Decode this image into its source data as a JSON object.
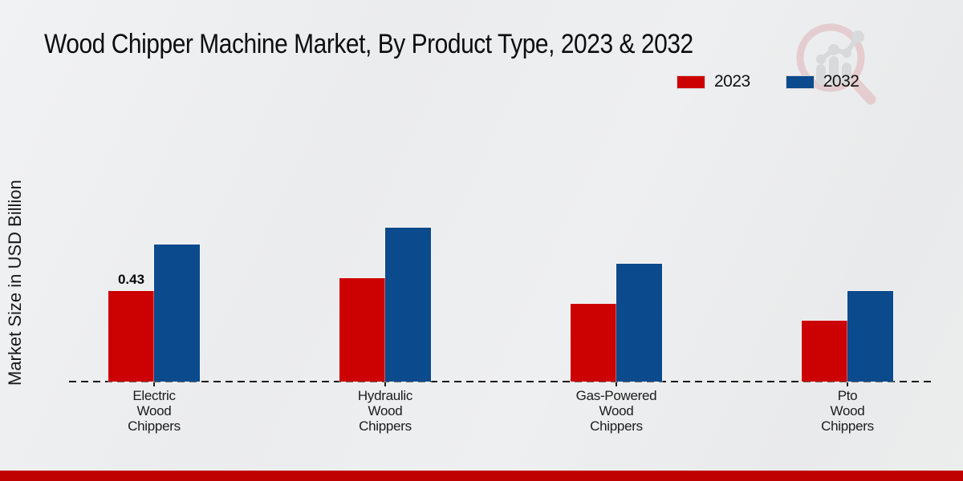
{
  "chart_data": {
    "type": "bar",
    "title": "Wood Chipper Machine Market, By Product Type, 2023 & 2032",
    "ylabel": "Market Size in USD Billion",
    "xlabel": "",
    "categories": [
      "Electric\nWood\nChippers",
      "Hydraulic\nWood\nChippers",
      "Gas-Powered\nWood\nChippers",
      "Pto\nWood\nChippers"
    ],
    "series": [
      {
        "name": "2023",
        "color": "#cc0202",
        "values": [
          0.43,
          0.49,
          0.37,
          0.29
        ]
      },
      {
        "name": "2032",
        "color": "#0b4a8c",
        "values": [
          0.65,
          0.73,
          0.56,
          0.43
        ]
      }
    ],
    "annotations": [
      {
        "series_index": 0,
        "category_index": 0,
        "text": "0.43"
      }
    ],
    "ylim": [
      0,
      0.8
    ],
    "grid": false,
    "legend_position": "top-right",
    "axis_line_style": "dashed",
    "axis_color": "#1a1a1a"
  },
  "icons": {
    "watermark": "magnifier-growth-chart-logo"
  },
  "watermark_colors": {
    "ring": "#dfb3b8",
    "bars": "#c9cacc"
  },
  "footer": {
    "accent_color": "#c00101"
  }
}
